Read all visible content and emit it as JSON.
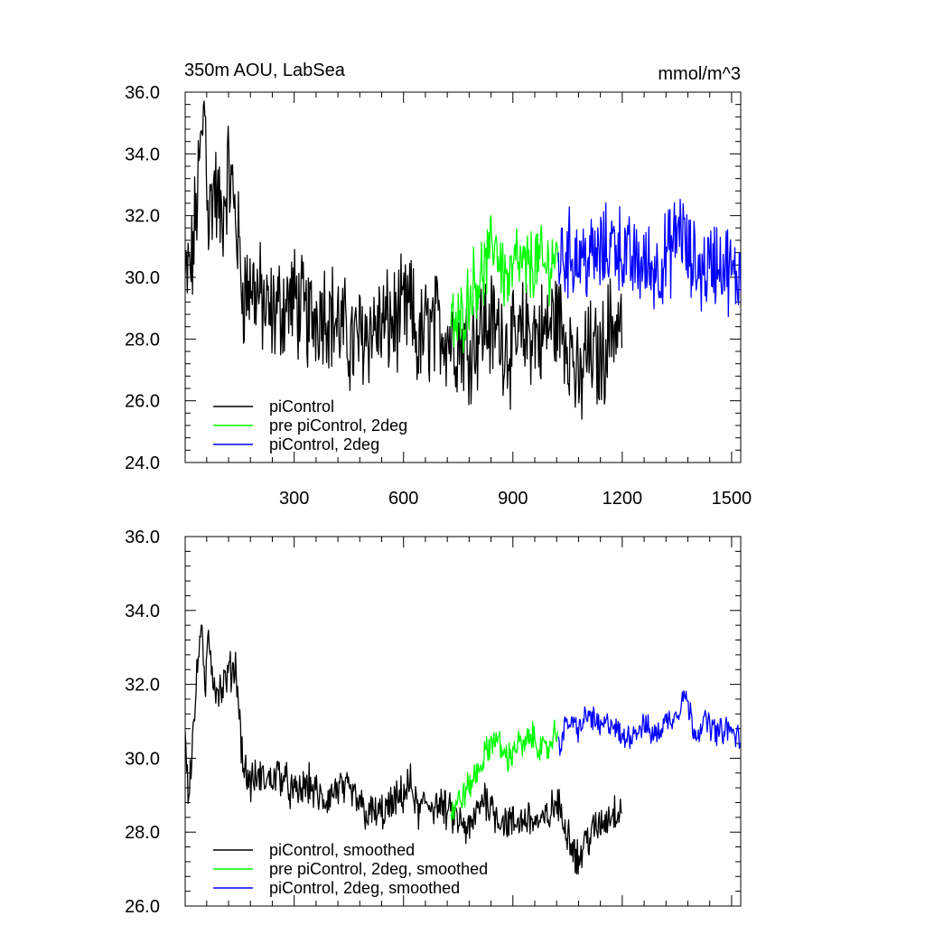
{
  "figure": {
    "title_left": "350m AOU, LabSea",
    "title_right": "mmol/m^3"
  },
  "colors": {
    "black": "#000000",
    "green": "#00ff00",
    "blue": "#0000ff"
  },
  "chart_data": [
    {
      "type": "line",
      "title": "350m AOU, LabSea",
      "units": "mmol/m^3",
      "xlim": [
        1,
        1525
      ],
      "ylim": [
        24.0,
        36.0
      ],
      "yticks": [
        "24.0",
        "26.0",
        "28.0",
        "30.0",
        "32.0",
        "34.0",
        "36.0"
      ],
      "xticks": [
        "300",
        "600",
        "900",
        "1200",
        "1500"
      ],
      "legend_position": "bottom-left",
      "series": [
        {
          "name": "piControl",
          "color": "#000000",
          "x": [
            1,
            20,
            40,
            55,
            65,
            80,
            100,
            120,
            140,
            160,
            180,
            200,
            230,
            260,
            300,
            340,
            380,
            420,
            460,
            500,
            540,
            580,
            620,
            640,
            660,
            700,
            740,
            780,
            820,
            860,
            900,
            940,
            980,
            1020,
            1060,
            1080,
            1100,
            1140,
            1170,
            1200
          ],
          "values": [
            29.8,
            30.5,
            33.5,
            35.7,
            31.8,
            33.0,
            31.8,
            33.5,
            32.0,
            29.5,
            29.8,
            29.5,
            28.7,
            29.0,
            29.3,
            28.6,
            29.1,
            28.5,
            27.8,
            28.3,
            28.4,
            28.6,
            29.0,
            27.7,
            28.3,
            28.4,
            28.0,
            27.8,
            28.5,
            28.3,
            27.6,
            28.3,
            28.1,
            28.7,
            27.8,
            26.2,
            27.6,
            27.3,
            28.5,
            28.5
          ]
        },
        {
          "name": "pre piControl, 2deg",
          "color": "#00ff00",
          "x": [
            730,
            750,
            770,
            790,
            810,
            830,
            850,
            870,
            890,
            910,
            930,
            950,
            970,
            990,
            1010,
            1025
          ],
          "values": [
            28.5,
            28.4,
            29.0,
            29.8,
            30.0,
            30.4,
            31.3,
            30.3,
            29.8,
            30.6,
            30.2,
            30.4,
            30.6,
            30.2,
            30.7,
            30.5
          ]
        },
        {
          "name": "piControl, 2deg",
          "color": "#0000ff",
          "x": [
            1025,
            1060,
            1100,
            1140,
            1180,
            1220,
            1260,
            1300,
            1340,
            1360,
            1380,
            1420,
            1460,
            1490,
            1510,
            1525
          ],
          "values": [
            30.6,
            30.8,
            30.6,
            30.7,
            31.2,
            30.5,
            30.4,
            30.3,
            31.0,
            31.8,
            30.6,
            30.2,
            30.6,
            30.3,
            29.8,
            30.4
          ]
        }
      ]
    },
    {
      "type": "line",
      "xlim": [
        1,
        1525
      ],
      "ylim": [
        26.0,
        36.0
      ],
      "yticks": [
        "26.0",
        "28.0",
        "30.0",
        "32.0",
        "34.0",
        "36.0"
      ],
      "legend_position": "bottom-left",
      "series": [
        {
          "name": "piControl, smoothed",
          "color": "#000000",
          "x": [
            1,
            10,
            25,
            45,
            55,
            65,
            80,
            100,
            120,
            140,
            160,
            180,
            200,
            230,
            260,
            300,
            340,
            380,
            420,
            460,
            500,
            540,
            580,
            620,
            640,
            660,
            700,
            740,
            780,
            820,
            860,
            900,
            940,
            980,
            1020,
            1060,
            1080,
            1100,
            1140,
            1170,
            1200
          ],
          "values": [
            30.8,
            29.0,
            31.0,
            33.8,
            31.5,
            33.5,
            32.0,
            31.8,
            32.3,
            32.5,
            29.8,
            29.3,
            29.5,
            29.4,
            29.6,
            29.0,
            29.3,
            28.8,
            29.2,
            29.0,
            28.5,
            28.5,
            28.8,
            29.3,
            28.5,
            28.8,
            28.7,
            28.4,
            28.0,
            29.0,
            28.4,
            28.2,
            28.4,
            28.2,
            28.8,
            27.8,
            27.2,
            27.8,
            28.2,
            28.5,
            28.7
          ]
        },
        {
          "name": "pre piControl, 2deg, smoothed",
          "color": "#00ff00",
          "x": [
            730,
            750,
            770,
            790,
            810,
            830,
            850,
            870,
            890,
            910,
            930,
            950,
            970,
            990,
            1010,
            1025
          ],
          "values": [
            28.5,
            28.8,
            29.1,
            29.4,
            29.8,
            30.2,
            30.6,
            30.2,
            30.0,
            30.4,
            30.3,
            30.6,
            30.4,
            30.1,
            30.6,
            30.8
          ]
        },
        {
          "name": "piControl, 2deg, smoothed",
          "color": "#0000ff",
          "x": [
            1025,
            1050,
            1080,
            1110,
            1140,
            1170,
            1200,
            1230,
            1260,
            1290,
            1320,
            1350,
            1370,
            1400,
            1430,
            1460,
            1490,
            1525
          ],
          "values": [
            30.3,
            31.0,
            30.8,
            31.2,
            30.8,
            31.0,
            30.5,
            30.7,
            30.9,
            30.6,
            31.0,
            31.2,
            31.8,
            30.7,
            31.0,
            30.7,
            30.8,
            30.5
          ]
        }
      ]
    }
  ]
}
